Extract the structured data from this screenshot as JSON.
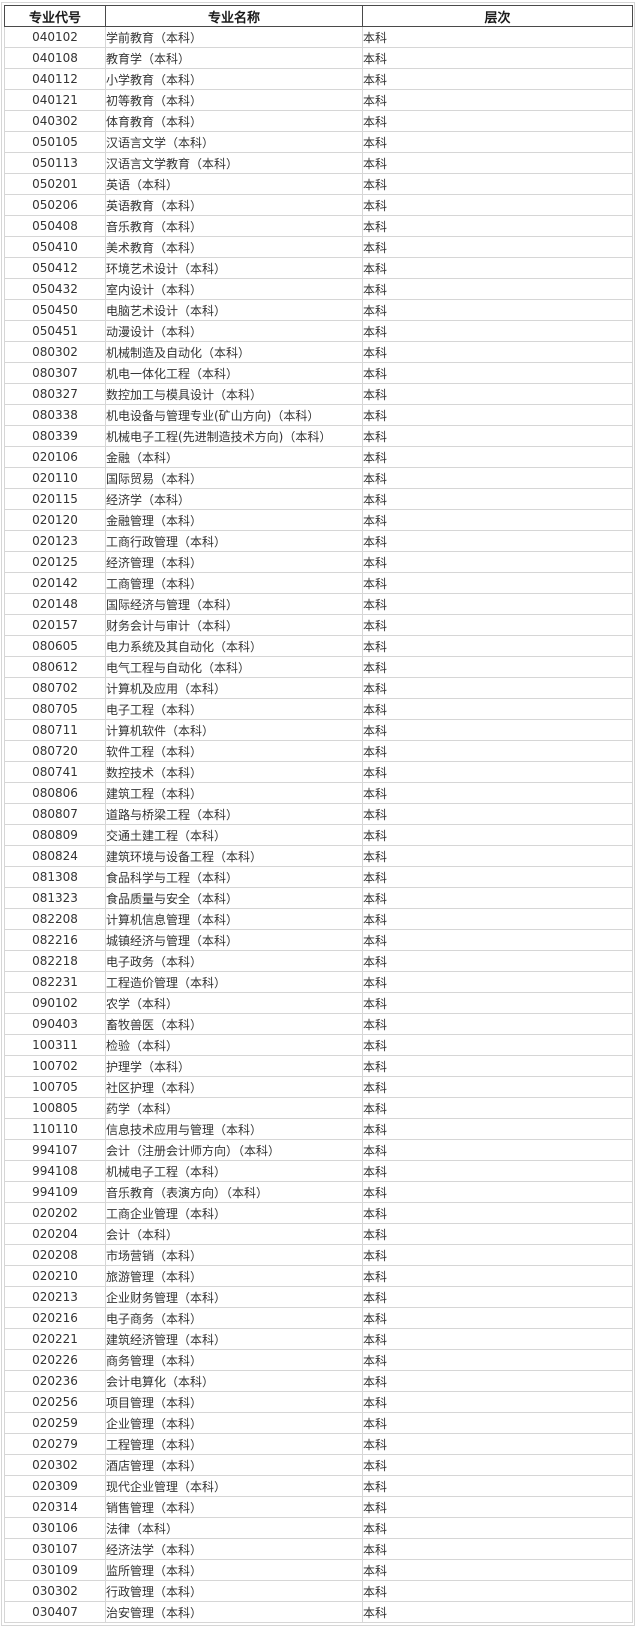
{
  "table": {
    "columns": [
      "专业代号",
      "专业名称",
      "层次"
    ],
    "rows": [
      {
        "code": "040102",
        "name": "学前教育（本科）",
        "level": "本科"
      },
      {
        "code": "040108",
        "name": "教育学（本科）",
        "level": "本科"
      },
      {
        "code": "040112",
        "name": "小学教育（本科）",
        "level": "本科"
      },
      {
        "code": "040121",
        "name": "初等教育（本科）",
        "level": "本科"
      },
      {
        "code": "040302",
        "name": "体育教育（本科）",
        "level": "本科"
      },
      {
        "code": "050105",
        "name": "汉语言文学（本科）",
        "level": "本科"
      },
      {
        "code": "050113",
        "name": "汉语言文学教育（本科）",
        "level": "本科"
      },
      {
        "code": "050201",
        "name": "英语（本科）",
        "level": "本科"
      },
      {
        "code": "050206",
        "name": "英语教育（本科）",
        "level": "本科"
      },
      {
        "code": "050408",
        "name": "音乐教育（本科）",
        "level": "本科"
      },
      {
        "code": "050410",
        "name": "美术教育（本科）",
        "level": "本科"
      },
      {
        "code": "050412",
        "name": "环境艺术设计（本科）",
        "level": "本科"
      },
      {
        "code": "050432",
        "name": "室内设计（本科）",
        "level": "本科"
      },
      {
        "code": "050450",
        "name": "电脑艺术设计（本科）",
        "level": "本科"
      },
      {
        "code": "050451",
        "name": "动漫设计（本科）",
        "level": "本科"
      },
      {
        "code": "080302",
        "name": "机械制造及自动化（本科）",
        "level": "本科"
      },
      {
        "code": "080307",
        "name": "机电一体化工程（本科）",
        "level": "本科"
      },
      {
        "code": "080327",
        "name": "数控加工与模具设计（本科）",
        "level": "本科"
      },
      {
        "code": "080338",
        "name": "机电设备与管理专业(矿山方向)（本科）",
        "level": "本科"
      },
      {
        "code": "080339",
        "name": "机械电子工程(先进制造技术方向)（本科）",
        "level": "本科"
      },
      {
        "code": "020106",
        "name": "金融（本科）",
        "level": "本科"
      },
      {
        "code": "020110",
        "name": "国际贸易（本科）",
        "level": "本科"
      },
      {
        "code": "020115",
        "name": "经济学（本科）",
        "level": "本科"
      },
      {
        "code": "020120",
        "name": "金融管理（本科）",
        "level": "本科"
      },
      {
        "code": "020123",
        "name": "工商行政管理（本科）",
        "level": "本科"
      },
      {
        "code": "020125",
        "name": "经济管理（本科）",
        "level": "本科"
      },
      {
        "code": "020142",
        "name": "工商管理（本科）",
        "level": "本科"
      },
      {
        "code": "020148",
        "name": "国际经济与管理（本科）",
        "level": "本科"
      },
      {
        "code": "020157",
        "name": "财务会计与审计（本科）",
        "level": "本科"
      },
      {
        "code": "080605",
        "name": "电力系统及其自动化（本科）",
        "level": "本科"
      },
      {
        "code": "080612",
        "name": "电气工程与自动化（本科）",
        "level": "本科"
      },
      {
        "code": "080702",
        "name": "计算机及应用（本科）",
        "level": "本科"
      },
      {
        "code": "080705",
        "name": "电子工程（本科）",
        "level": "本科"
      },
      {
        "code": "080711",
        "name": "计算机软件（本科）",
        "level": "本科"
      },
      {
        "code": "080720",
        "name": "软件工程（本科）",
        "level": "本科"
      },
      {
        "code": "080741",
        "name": "数控技术（本科）",
        "level": "本科"
      },
      {
        "code": "080806",
        "name": "建筑工程（本科）",
        "level": "本科"
      },
      {
        "code": "080807",
        "name": "道路与桥梁工程（本科）",
        "level": "本科"
      },
      {
        "code": "080809",
        "name": "交通土建工程（本科）",
        "level": "本科"
      },
      {
        "code": "080824",
        "name": "建筑环境与设备工程（本科）",
        "level": "本科"
      },
      {
        "code": "081308",
        "name": "食品科学与工程（本科）",
        "level": "本科"
      },
      {
        "code": "081323",
        "name": "食品质量与安全（本科）",
        "level": "本科"
      },
      {
        "code": "082208",
        "name": "计算机信息管理（本科）",
        "level": "本科"
      },
      {
        "code": "082216",
        "name": "城镇经济与管理（本科）",
        "level": "本科"
      },
      {
        "code": "082218",
        "name": "电子政务（本科）",
        "level": "本科"
      },
      {
        "code": "082231",
        "name": "工程造价管理（本科）",
        "level": "本科"
      },
      {
        "code": "090102",
        "name": "农学（本科）",
        "level": "本科"
      },
      {
        "code": "090403",
        "name": "畜牧兽医（本科）",
        "level": "本科"
      },
      {
        "code": "100311",
        "name": "检验（本科）",
        "level": "本科"
      },
      {
        "code": "100702",
        "name": "护理学（本科）",
        "level": "本科"
      },
      {
        "code": "100705",
        "name": "社区护理（本科）",
        "level": "本科"
      },
      {
        "code": "100805",
        "name": "药学（本科）",
        "level": "本科"
      },
      {
        "code": "110110",
        "name": "信息技术应用与管理（本科）",
        "level": "本科"
      },
      {
        "code": "994107",
        "name": "会计（注册会计师方向）（本科）",
        "level": "本科"
      },
      {
        "code": "994108",
        "name": "机械电子工程（本科）",
        "level": "本科"
      },
      {
        "code": "994109",
        "name": "音乐教育（表演方向）（本科）",
        "level": "本科"
      },
      {
        "code": "020202",
        "name": "工商企业管理（本科）",
        "level": "本科"
      },
      {
        "code": "020204",
        "name": "会计（本科）",
        "level": "本科"
      },
      {
        "code": "020208",
        "name": "市场营销（本科）",
        "level": "本科"
      },
      {
        "code": "020210",
        "name": "旅游管理（本科）",
        "level": "本科"
      },
      {
        "code": "020213",
        "name": "企业财务管理（本科）",
        "level": "本科"
      },
      {
        "code": "020216",
        "name": "电子商务（本科）",
        "level": "本科"
      },
      {
        "code": "020221",
        "name": "建筑经济管理（本科）",
        "level": "本科"
      },
      {
        "code": "020226",
        "name": "商务管理（本科）",
        "level": "本科"
      },
      {
        "code": "020236",
        "name": "会计电算化（本科）",
        "level": "本科"
      },
      {
        "code": "020256",
        "name": "项目管理（本科）",
        "level": "本科"
      },
      {
        "code": "020259",
        "name": "企业管理（本科）",
        "level": "本科"
      },
      {
        "code": "020279",
        "name": "工程管理（本科）",
        "level": "本科"
      },
      {
        "code": "020302",
        "name": "酒店管理（本科）",
        "level": "本科"
      },
      {
        "code": "020309",
        "name": "现代企业管理（本科）",
        "level": "本科"
      },
      {
        "code": "020314",
        "name": "销售管理（本科）",
        "level": "本科"
      },
      {
        "code": "030106",
        "name": "法律（本科）",
        "level": "本科"
      },
      {
        "code": "030107",
        "name": "经济法学（本科）",
        "level": "本科"
      },
      {
        "code": "030109",
        "name": "监所管理（本科）",
        "level": "本科"
      },
      {
        "code": "030302",
        "name": "行政管理（本科）",
        "level": "本科"
      },
      {
        "code": "030407",
        "name": "治安管理（本科）",
        "level": "本科"
      }
    ]
  },
  "colors": {
    "grid_border": "#d6d6d6",
    "header_border": "#4a4a4a",
    "text": "#333333"
  }
}
